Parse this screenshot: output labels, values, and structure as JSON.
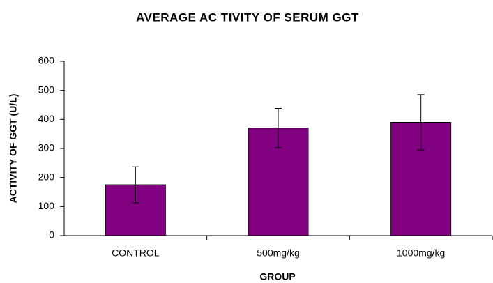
{
  "chart_data": {
    "type": "bar",
    "title": "AVERAGE AC TIVITY OF SERUM GGT",
    "x_label": "GROUP",
    "y_label": "ACTIVITY OF GGT (U/L)",
    "categories": [
      "CONTROL",
      "500mg/kg",
      "1000mg/kg"
    ],
    "values": [
      175,
      370,
      390
    ],
    "errors": [
      62,
      68,
      95
    ],
    "color": "#800080",
    "ylim": [
      0,
      600
    ],
    "yticks": [
      0,
      100,
      200,
      300,
      400,
      500,
      600
    ],
    "grid": false
  }
}
